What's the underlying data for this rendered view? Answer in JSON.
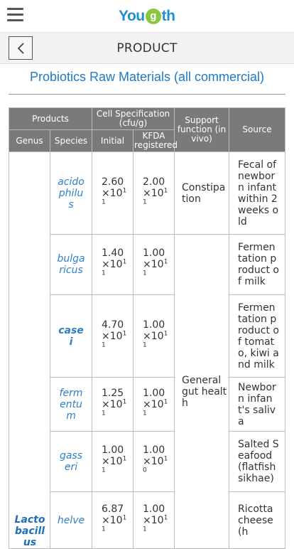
{
  "header": {
    "logo": {
      "prefix": "You",
      "circle": "g",
      "suffix": "th"
    }
  },
  "nav": {
    "title": "PRODUCT"
  },
  "section": {
    "title": "Probiotics Raw Materials (all commercial)"
  },
  "table": {
    "headers": {
      "products": "Products",
      "cell_spec": "Cell Specification (cfu/g)",
      "support": "Support function (in vivo)",
      "source": "Source",
      "genus": "Genus",
      "species": "Species",
      "initial": "Initial",
      "kfda": "KFDA registered"
    },
    "genus": "Lactobacillus",
    "rows": [
      {
        "species": "acidophilus",
        "init_m": "2.60",
        "init_e": "11",
        "kfda_m": "2.00",
        "kfda_e": "11",
        "func": "Constipation",
        "source": "Fecal of newborn infant within 2 weeks old"
      },
      {
        "species": "bulgaricus",
        "init_m": "1.40",
        "init_e": "11",
        "kfda_m": "1.00",
        "kfda_e": "11",
        "source": "Fermentation product of milk"
      },
      {
        "species": "casei",
        "init_m": "4.70",
        "init_e": "11",
        "kfda_m": "1.00",
        "kfda_e": "11",
        "source": "Fermentation product of tomato, kiwi and milk"
      },
      {
        "species": "fermentum",
        "init_m": "1.25",
        "init_e": "11",
        "kfda_m": "1.00",
        "kfda_e": "11",
        "source": "Newborn infant's saliva"
      },
      {
        "species": "gasseri",
        "init_m": "1.00",
        "init_e": "11",
        "kfda_m": "1.00",
        "kfda_e": "10",
        "source": "Salted Seafood (flatfish sikhae)"
      },
      {
        "species": "helve",
        "init_m": "6.87",
        "init_e": "11",
        "kfda_m": "1.00",
        "kfda_e": "11",
        "source": "Ricotta cheese (h"
      }
    ],
    "merged_func": "General gut health",
    "times_sign": "×10"
  }
}
